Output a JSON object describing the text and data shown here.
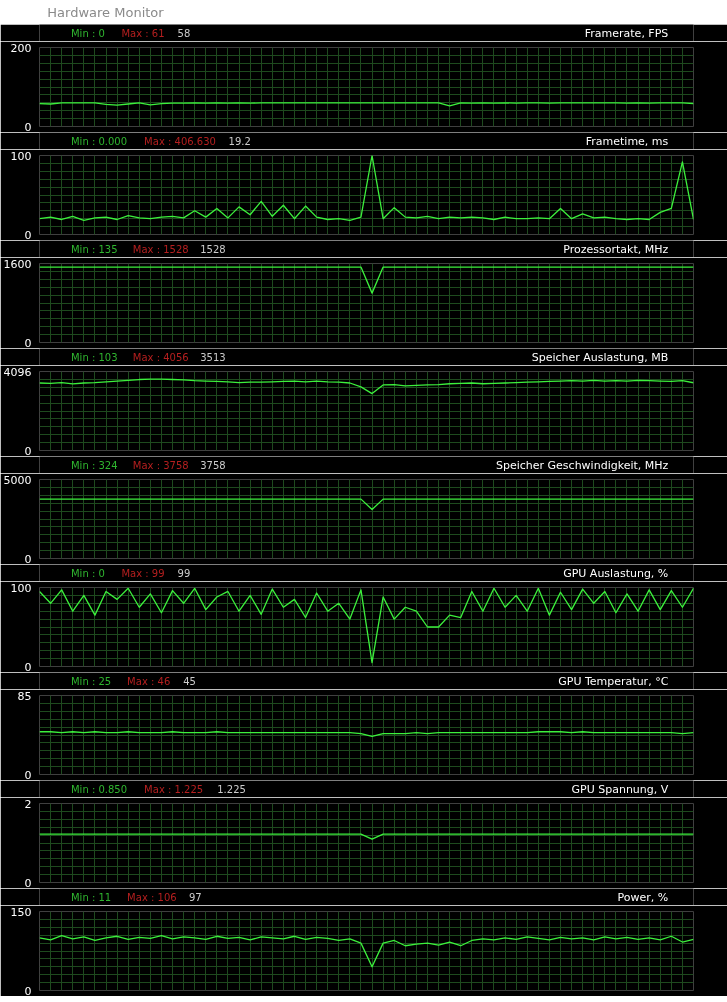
{
  "chart_data": [
    {
      "type": "line",
      "subtitle": "Hardware Monitor",
      "title": "Framerate, FPS",
      "categories": [
        null,
        null,
        null,
        null,
        null,
        null,
        null,
        null,
        null,
        null,
        null,
        null,
        null,
        null,
        null,
        null,
        null,
        null,
        null,
        null,
        null,
        null,
        null,
        null,
        null,
        null,
        null,
        null,
        null,
        null,
        null,
        null,
        null,
        null,
        null,
        null,
        null,
        null,
        null,
        null,
        null,
        null,
        null,
        null,
        null,
        null,
        null,
        null,
        null,
        null,
        null,
        null,
        null,
        null,
        null,
        null,
        null,
        null,
        null,
        null
      ],
      "ylim": [
        0,
        200
      ],
      "yticks": [
        0,
        {
          "value": 20,
          "label": null
        },
        {
          "value": 40,
          "label": null
        },
        {
          "value": 60,
          "label": null
        },
        {
          "value": 80,
          "label": null
        },
        {
          "value": 100,
          "label": null
        },
        {
          "value": 120,
          "label": null
        },
        {
          "value": 140,
          "label": null
        },
        {
          "value": 160,
          "label": null
        },
        {
          "value": 180,
          "label": null
        },
        200
      ],
      "grid": true,
      "tick_labels": "y",
      "annotations": [
        "Min : 0",
        "Max : 61",
        "58"
      ],
      "series": [
        {
          "color": "#3cf03c",
          "values": [
            58,
            57,
            60,
            60,
            60,
            60,
            56,
            54,
            57,
            60,
            55,
            58,
            59,
            59,
            60,
            59,
            60,
            59,
            60,
            59,
            60,
            60,
            60,
            60,
            60,
            60,
            60,
            60,
            60,
            60,
            60,
            60,
            60,
            60,
            60,
            60,
            60,
            52,
            60,
            59,
            60,
            59,
            60,
            59,
            60,
            60,
            59,
            60,
            60,
            60,
            60,
            60,
            60,
            59,
            60,
            59,
            60,
            60,
            60,
            58
          ]
        }
      ]
    },
    {
      "type": "line",
      "title": "Frametime, ms",
      "categories": [
        null,
        null,
        null,
        null,
        null,
        null,
        null,
        null,
        null,
        null,
        null,
        null,
        null,
        null,
        null,
        null,
        null,
        null,
        null,
        null,
        null,
        null,
        null,
        null,
        null,
        null,
        null,
        null,
        null,
        null,
        null,
        null,
        null,
        null,
        null,
        null,
        null,
        null,
        null,
        null,
        null,
        null,
        null,
        null,
        null,
        null,
        null,
        null,
        null,
        null,
        null,
        null,
        null,
        null,
        null,
        null,
        null,
        null,
        null,
        null
      ],
      "ylim": [
        0,
        100
      ],
      "yticks": [
        0,
        {
          "value": 10,
          "label": null
        },
        {
          "value": 20,
          "label": null
        },
        {
          "value": 30,
          "label": null
        },
        {
          "value": 40,
          "label": null
        },
        {
          "value": 50,
          "label": null
        },
        {
          "value": 60,
          "label": null
        },
        {
          "value": 70,
          "label": null
        },
        {
          "value": 80,
          "label": null
        },
        {
          "value": 90,
          "label": null
        },
        100
      ],
      "grid": true,
      "tick_labels": "y",
      "annotations": [
        "Min : 0.000",
        "Max : 406.630",
        "19.2"
      ],
      "series": [
        {
          "color": "#3cf03c",
          "values": [
            20,
            22,
            19,
            23,
            18,
            21,
            22,
            19,
            24,
            21,
            20,
            22,
            23,
            21,
            30,
            22,
            33,
            21,
            35,
            25,
            42,
            23,
            37,
            20,
            36,
            22,
            19,
            20,
            18,
            22,
            100,
            20,
            34,
            22,
            21,
            23,
            20,
            22,
            21,
            22,
            21,
            19,
            22,
            20,
            20,
            21,
            20,
            33,
            20,
            26,
            21,
            22,
            20,
            19,
            20,
            19,
            28,
            33,
            92,
            19.2
          ]
        }
      ]
    },
    {
      "type": "line",
      "title": "Prozessortakt, MHz",
      "categories": [
        null,
        null,
        null,
        null,
        null,
        null,
        null,
        null,
        null,
        null,
        null,
        null,
        null,
        null,
        null,
        null,
        null,
        null,
        null,
        null,
        null,
        null,
        null,
        null,
        null,
        null,
        null,
        null,
        null,
        null,
        null,
        null,
        null,
        null,
        null,
        null,
        null,
        null,
        null,
        null,
        null,
        null,
        null,
        null,
        null,
        null,
        null,
        null,
        null,
        null,
        null,
        null,
        null,
        null,
        null,
        null,
        null,
        null,
        null,
        null
      ],
      "ylim": [
        0,
        1600
      ],
      "yticks": [
        0,
        {
          "value": 160,
          "label": null
        },
        {
          "value": 320,
          "label": null
        },
        {
          "value": 480,
          "label": null
        },
        {
          "value": 640,
          "label": null
        },
        {
          "value": 800,
          "label": null
        },
        {
          "value": 960,
          "label": null
        },
        {
          "value": 1120,
          "label": null
        },
        {
          "value": 1280,
          "label": null
        },
        {
          "value": 1440,
          "label": null
        },
        1600
      ],
      "grid": true,
      "tick_labels": "y",
      "annotations": [
        "Min : 135",
        "Max : 1528",
        "1528"
      ],
      "series": [
        {
          "color": "#3cf03c",
          "values": [
            1528,
            1528,
            1528,
            1528,
            1528,
            1528,
            1528,
            1528,
            1528,
            1528,
            1528,
            1528,
            1528,
            1528,
            1528,
            1528,
            1528,
            1528,
            1528,
            1528,
            1528,
            1528,
            1528,
            1528,
            1528,
            1528,
            1528,
            1528,
            1528,
            1528,
            1000,
            1528,
            1528,
            1528,
            1528,
            1528,
            1528,
            1528,
            1528,
            1528,
            1528,
            1528,
            1528,
            1528,
            1528,
            1528,
            1528,
            1528,
            1528,
            1528,
            1528,
            1528,
            1528,
            1528,
            1528,
            1528,
            1528,
            1528,
            1528,
            1528
          ]
        }
      ]
    },
    {
      "type": "line",
      "title": "Speicher Auslastung, MB",
      "categories": [
        null,
        null,
        null,
        null,
        null,
        null,
        null,
        null,
        null,
        null,
        null,
        null,
        null,
        null,
        null,
        null,
        null,
        null,
        null,
        null,
        null,
        null,
        null,
        null,
        null,
        null,
        null,
        null,
        null,
        null,
        null,
        null,
        null,
        null,
        null,
        null,
        null,
        null,
        null,
        null,
        null,
        null,
        null,
        null,
        null,
        null,
        null,
        null,
        null,
        null,
        null,
        null,
        null,
        null,
        null,
        null,
        null,
        null,
        null,
        null
      ],
      "ylim": [
        0,
        4096
      ],
      "yticks": [
        0,
        {
          "value": 409.6,
          "label": null
        },
        {
          "value": 819.2,
          "label": null
        },
        {
          "value": 1228.8,
          "label": null
        },
        {
          "value": 1638.4,
          "label": null
        },
        {
          "value": 2048,
          "label": null
        },
        {
          "value": 2457.6,
          "label": null
        },
        {
          "value": 2867.2,
          "label": null
        },
        {
          "value": 3276.8,
          "label": null
        },
        {
          "value": 3686.4,
          "label": null
        },
        4096
      ],
      "grid": true,
      "tick_labels": "y",
      "annotations": [
        "Min : 103",
        "Max : 4056",
        "3513"
      ],
      "series": [
        {
          "color": "#3cf03c",
          "values": [
            3500,
            3480,
            3520,
            3450,
            3500,
            3520,
            3560,
            3600,
            3640,
            3680,
            3700,
            3700,
            3680,
            3660,
            3620,
            3600,
            3580,
            3560,
            3520,
            3540,
            3550,
            3560,
            3580,
            3600,
            3560,
            3600,
            3560,
            3540,
            3500,
            3300,
            2950,
            3400,
            3420,
            3350,
            3380,
            3400,
            3420,
            3460,
            3480,
            3500,
            3460,
            3480,
            3500,
            3520,
            3540,
            3560,
            3580,
            3600,
            3620,
            3600,
            3640,
            3600,
            3620,
            3600,
            3640,
            3620,
            3600,
            3580,
            3620,
            3513
          ]
        }
      ]
    },
    {
      "type": "line",
      "title": "Speicher Geschwindigkeit, MHz",
      "categories": [
        null,
        null,
        null,
        null,
        null,
        null,
        null,
        null,
        null,
        null,
        null,
        null,
        null,
        null,
        null,
        null,
        null,
        null,
        null,
        null,
        null,
        null,
        null,
        null,
        null,
        null,
        null,
        null,
        null,
        null,
        null,
        null,
        null,
        null,
        null,
        null,
        null,
        null,
        null,
        null,
        null,
        null,
        null,
        null,
        null,
        null,
        null,
        null,
        null,
        null,
        null,
        null,
        null,
        null,
        null,
        null,
        null,
        null,
        null,
        null
      ],
      "ylim": [
        0,
        5000
      ],
      "yticks": [
        0,
        {
          "value": 500,
          "label": null
        },
        {
          "value": 1000,
          "label": null
        },
        {
          "value": 1500,
          "label": null
        },
        {
          "value": 2000,
          "label": null
        },
        {
          "value": 2500,
          "label": null
        },
        {
          "value": 3000,
          "label": null
        },
        {
          "value": 3500,
          "label": null
        },
        {
          "value": 4000,
          "label": null
        },
        {
          "value": 4500,
          "label": null
        },
        5000
      ],
      "grid": true,
      "tick_labels": "y",
      "annotations": [
        "Min : 324",
        "Max : 3758",
        "3758"
      ],
      "series": [
        {
          "color": "#3cf03c",
          "values": [
            3758,
            3758,
            3758,
            3758,
            3758,
            3758,
            3758,
            3758,
            3758,
            3758,
            3758,
            3758,
            3758,
            3758,
            3758,
            3758,
            3758,
            3758,
            3758,
            3758,
            3758,
            3758,
            3758,
            3758,
            3758,
            3758,
            3758,
            3758,
            3758,
            3758,
            3100,
            3758,
            3758,
            3758,
            3758,
            3758,
            3758,
            3758,
            3758,
            3758,
            3758,
            3758,
            3758,
            3758,
            3758,
            3758,
            3758,
            3758,
            3758,
            3758,
            3758,
            3758,
            3758,
            3758,
            3758,
            3758,
            3758,
            3758,
            3758,
            3758
          ]
        }
      ]
    },
    {
      "type": "line",
      "title": "GPU Auslastung, %",
      "categories": [
        null,
        null,
        null,
        null,
        null,
        null,
        null,
        null,
        null,
        null,
        null,
        null,
        null,
        null,
        null,
        null,
        null,
        null,
        null,
        null,
        null,
        null,
        null,
        null,
        null,
        null,
        null,
        null,
        null,
        null,
        null,
        null,
        null,
        null,
        null,
        null,
        null,
        null,
        null,
        null,
        null,
        null,
        null,
        null,
        null,
        null,
        null,
        null,
        null,
        null,
        null,
        null,
        null,
        null,
        null,
        null,
        null,
        null,
        null,
        null
      ],
      "ylim": [
        0,
        100
      ],
      "yticks": [
        0,
        {
          "value": 10,
          "label": null
        },
        {
          "value": 20,
          "label": null
        },
        {
          "value": 30,
          "label": null
        },
        {
          "value": 40,
          "label": null
        },
        {
          "value": 50,
          "label": null
        },
        {
          "value": 60,
          "label": null
        },
        {
          "value": 70,
          "label": null
        },
        {
          "value": 80,
          "label": null
        },
        {
          "value": 90,
          "label": null
        },
        100
      ],
      "grid": true,
      "tick_labels": "y",
      "annotations": [
        "Min : 0",
        "Max : 99",
        "99"
      ],
      "series": [
        {
          "color": "#3cf03c",
          "values": [
            95,
            80,
            97,
            70,
            90,
            65,
            95,
            85,
            99,
            75,
            92,
            68,
            96,
            80,
            99,
            72,
            88,
            95,
            70,
            90,
            66,
            98,
            75,
            85,
            62,
            93,
            70,
            80,
            60,
            97,
            5,
            88,
            60,
            75,
            70,
            50,
            50,
            65,
            62,
            95,
            70,
            99,
            75,
            90,
            70,
            99,
            65,
            94,
            72,
            98,
            80,
            95,
            68,
            92,
            70,
            97,
            72,
            96,
            75,
            99
          ]
        }
      ]
    },
    {
      "type": "line",
      "title": "GPU Temperatur, °C",
      "categories": [
        null,
        null,
        null,
        null,
        null,
        null,
        null,
        null,
        null,
        null,
        null,
        null,
        null,
        null,
        null,
        null,
        null,
        null,
        null,
        null,
        null,
        null,
        null,
        null,
        null,
        null,
        null,
        null,
        null,
        null,
        null,
        null,
        null,
        null,
        null,
        null,
        null,
        null,
        null,
        null,
        null,
        null,
        null,
        null,
        null,
        null,
        null,
        null,
        null,
        null,
        null,
        null,
        null,
        null,
        null,
        null,
        null,
        null,
        null,
        null
      ],
      "ylim": [
        0,
        85
      ],
      "yticks": [
        0,
        {
          "value": 8.5,
          "label": null
        },
        {
          "value": 17,
          "label": null
        },
        {
          "value": 25.5,
          "label": null
        },
        {
          "value": 34,
          "label": null
        },
        {
          "value": 42.5,
          "label": null
        },
        {
          "value": 51,
          "label": null
        },
        {
          "value": 59.5,
          "label": null
        },
        {
          "value": 68,
          "label": null
        },
        {
          "value": 76.5,
          "label": null
        },
        85
      ],
      "grid": true,
      "tick_labels": "y",
      "annotations": [
        "Min : 25",
        "Max : 46",
        "45"
      ],
      "series": [
        {
          "color": "#3cf03c",
          "values": [
            46,
            46,
            45,
            46,
            45,
            46,
            45,
            45,
            46,
            45,
            45,
            45,
            46,
            45,
            45,
            45,
            46,
            45,
            45,
            45,
            45,
            45,
            45,
            45,
            45,
            45,
            45,
            45,
            45,
            44,
            41,
            44,
            44,
            44,
            45,
            44,
            45,
            45,
            45,
            45,
            45,
            45,
            45,
            45,
            45,
            46,
            46,
            46,
            45,
            46,
            45,
            45,
            45,
            45,
            45,
            45,
            45,
            45,
            44,
            45
          ]
        }
      ]
    },
    {
      "type": "line",
      "title": "GPU Spannung, V",
      "categories": [
        null,
        null,
        null,
        null,
        null,
        null,
        null,
        null,
        null,
        null,
        null,
        null,
        null,
        null,
        null,
        null,
        null,
        null,
        null,
        null,
        null,
        null,
        null,
        null,
        null,
        null,
        null,
        null,
        null,
        null,
        null,
        null,
        null,
        null,
        null,
        null,
        null,
        null,
        null,
        null,
        null,
        null,
        null,
        null,
        null,
        null,
        null,
        null,
        null,
        null,
        null,
        null,
        null,
        null,
        null,
        null,
        null,
        null,
        null,
        null
      ],
      "ylim": [
        0,
        2
      ],
      "yticks": [
        0,
        {
          "value": 0.2,
          "label": null
        },
        {
          "value": 0.4,
          "label": null
        },
        {
          "value": 0.6,
          "label": null
        },
        {
          "value": 0.8,
          "label": null
        },
        {
          "value": 1,
          "label": null
        },
        {
          "value": 1.2,
          "label": null
        },
        {
          "value": 1.4,
          "label": null
        },
        {
          "value": 1.6,
          "label": null
        },
        {
          "value": 1.8,
          "label": null
        },
        2
      ],
      "grid": true,
      "tick_labels": "y",
      "annotations": [
        "Min : 0.850",
        "Max : 1.225",
        "1.225"
      ],
      "series": [
        {
          "color": "#3cf03c",
          "values": [
            1.225,
            1.225,
            1.225,
            1.225,
            1.225,
            1.225,
            1.225,
            1.225,
            1.225,
            1.225,
            1.225,
            1.225,
            1.225,
            1.225,
            1.225,
            1.225,
            1.225,
            1.225,
            1.225,
            1.225,
            1.225,
            1.225,
            1.225,
            1.225,
            1.225,
            1.225,
            1.225,
            1.225,
            1.225,
            1.225,
            1.1,
            1.225,
            1.225,
            1.225,
            1.225,
            1.225,
            1.225,
            1.225,
            1.225,
            1.225,
            1.225,
            1.225,
            1.225,
            1.225,
            1.225,
            1.225,
            1.225,
            1.225,
            1.225,
            1.225,
            1.225,
            1.225,
            1.225,
            1.225,
            1.225,
            1.225,
            1.225,
            1.225,
            1.225,
            1.225
          ]
        }
      ]
    },
    {
      "type": "line",
      "title": "Power, %",
      "categories": [
        null,
        null,
        null,
        null,
        null,
        null,
        null,
        null,
        null,
        null,
        null,
        null,
        null,
        null,
        null,
        null,
        null,
        null,
        null,
        null,
        null,
        null,
        null,
        null,
        null,
        null,
        null,
        null,
        null,
        null,
        null,
        null,
        null,
        null,
        null,
        null,
        null,
        null,
        null,
        null,
        null,
        null,
        null,
        null,
        null,
        null,
        null,
        null,
        null,
        null,
        null,
        null,
        null,
        null,
        null,
        null,
        null,
        null,
        null,
        null
      ],
      "ylim": [
        0,
        150
      ],
      "yticks": [
        0,
        {
          "value": 15,
          "label": null
        },
        {
          "value": 30,
          "label": null
        },
        {
          "value": 45,
          "label": null
        },
        {
          "value": 60,
          "label": null
        },
        {
          "value": 75,
          "label": null
        },
        {
          "value": 90,
          "label": null
        },
        {
          "value": 105,
          "label": null
        },
        {
          "value": 120,
          "label": null
        },
        {
          "value": 135,
          "label": null
        },
        150
      ],
      "grid": true,
      "tick_labels": "y",
      "annotations": [
        "Min : 11",
        "Max : 106",
        "97"
      ],
      "series": [
        {
          "color": "#3cf03c",
          "values": [
            100,
            96,
            104,
            98,
            102,
            95,
            100,
            103,
            97,
            101,
            99,
            104,
            98,
            102,
            100,
            97,
            103,
            99,
            101,
            96,
            102,
            100,
            98,
            103,
            97,
            101,
            99,
            95,
            98,
            90,
            45,
            90,
            95,
            85,
            88,
            90,
            86,
            92,
            85,
            95,
            98,
            96,
            100,
            97,
            102,
            99,
            96,
            101,
            98,
            100,
            96,
            102,
            98,
            101,
            97,
            100,
            96,
            103,
            92,
            97
          ]
        }
      ]
    }
  ]
}
